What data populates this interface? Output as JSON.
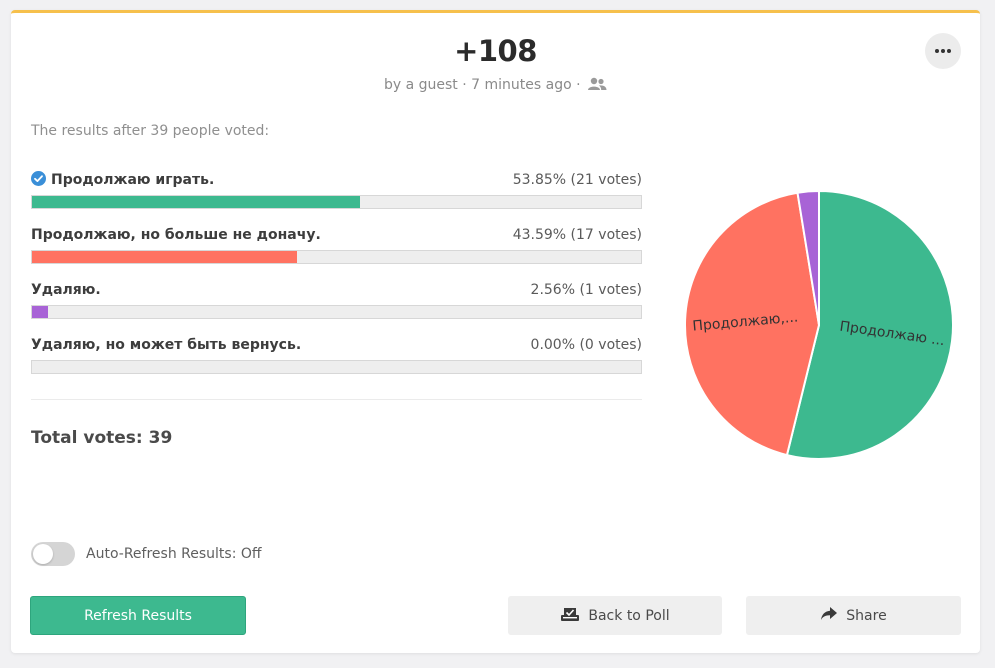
{
  "header": {
    "title": "+108",
    "meta": "by a guest · 7 minutes ago ·",
    "meta_icon": "people-icon",
    "more_icon": "more-dots-icon"
  },
  "results": {
    "subtitle": "The results after 39 people voted:",
    "total_label": "Total votes: 39"
  },
  "options": [
    {
      "label": "Продолжаю играть.",
      "pct_text": "53.85% (21 votes)",
      "percent": 53.85,
      "color": "#3db98f",
      "selected": true
    },
    {
      "label": "Продолжаю, но больше не доначу.",
      "pct_text": "43.59% (17 votes)",
      "percent": 43.59,
      "color": "#ff7261",
      "selected": false
    },
    {
      "label": "Удаляю.",
      "pct_text": "2.56% (1 votes)",
      "percent": 2.56,
      "color": "#a863d6",
      "selected": false
    },
    {
      "label": "Удаляю, но может быть вернусь.",
      "pct_text": "0.00% (0 votes)",
      "percent": 0.0,
      "color": "#cccccc",
      "selected": false
    }
  ],
  "chart_data": {
    "type": "pie",
    "categories": [
      "Продолжаю играть.",
      "Продолжаю, но больше не доначу.",
      "Удаляю.",
      "Удаляю, но может быть вернусь."
    ],
    "values": [
      21,
      17,
      1,
      0
    ],
    "slice_labels": [
      "Продолжаю ...",
      "Продолжаю,...",
      "",
      ""
    ],
    "colors": [
      "#3db98f",
      "#ff7261",
      "#a863d6",
      "#cccccc"
    ]
  },
  "controls": {
    "auto_refresh_label": "Auto-Refresh Results: Off",
    "auto_refresh_on": false,
    "refresh_button": "Refresh Results",
    "back_button": "Back to Poll",
    "back_icon": "ballot-box-icon",
    "share_button": "Share",
    "share_icon": "share-arrow-icon"
  }
}
